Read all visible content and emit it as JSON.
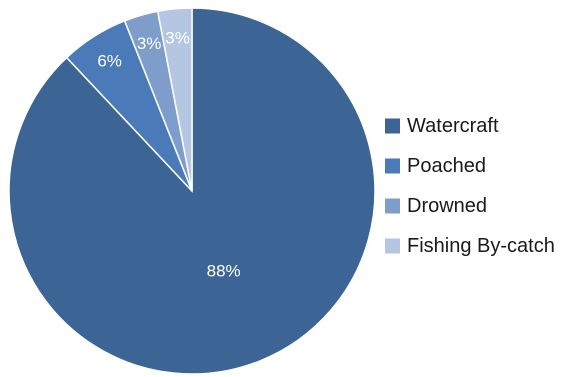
{
  "chart_data": {
    "type": "pie",
    "categories": [
      "Watercraft",
      "Poached",
      "Drowned",
      "Fishing By-catch"
    ],
    "values": [
      88,
      6,
      3,
      3
    ],
    "data_labels": [
      "88%",
      "6%",
      "3%",
      "3%"
    ],
    "colors": [
      "#3C6596",
      "#4A7AB8",
      "#7F9DCB",
      "#B5C6E3"
    ],
    "start_angle_deg": 0,
    "direction": "clockwise",
    "legend": {
      "placement": "right"
    }
  }
}
